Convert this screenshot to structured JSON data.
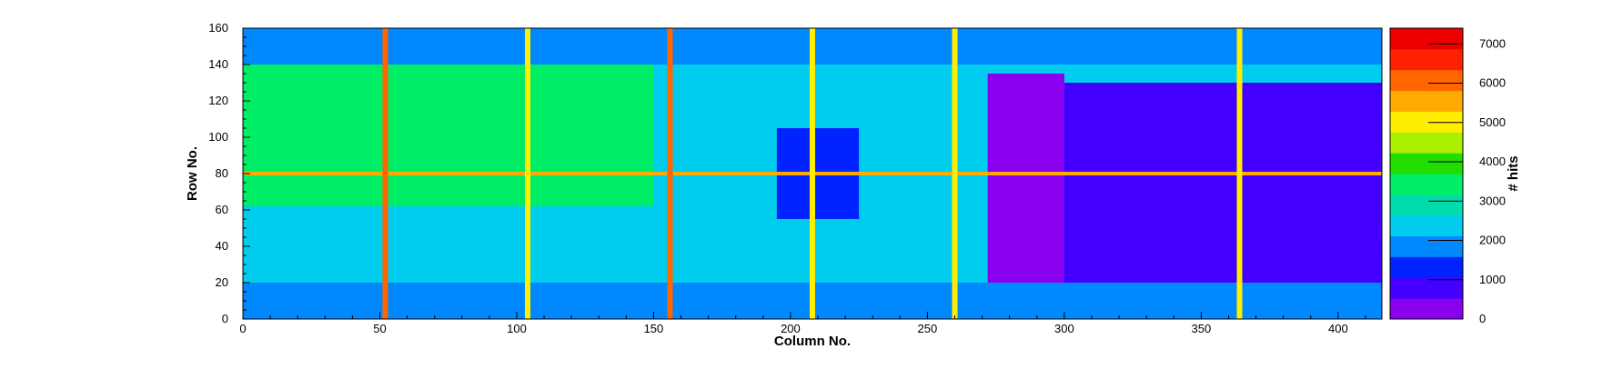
{
  "chart_data": {
    "type": "heatmap",
    "title": "",
    "xlabel": "Column No.",
    "ylabel": "Row No.",
    "colorbar_label": "# hits",
    "xlim": [
      0,
      416
    ],
    "ylim": [
      0,
      160
    ],
    "zlim": [
      0,
      7400
    ],
    "x_ticks": [
      "0",
      "50",
      "100",
      "150",
      "200",
      "250",
      "300",
      "350",
      "400"
    ],
    "y_ticks": [
      "0",
      "20",
      "40",
      "60",
      "80",
      "100",
      "120",
      "140",
      "160"
    ],
    "z_ticks": [
      "0",
      "1000",
      "2000",
      "3000",
      "4000",
      "5000",
      "6000",
      "7000"
    ],
    "palette": [
      "#8800ee",
      "#4400ff",
      "#0022ff",
      "#0088ff",
      "#00ccee",
      "#00ddaa",
      "#00ee66",
      "#22dd00",
      "#aaee00",
      "#ffee00",
      "#ffaa00",
      "#ff6600",
      "#ff2200",
      "#ee0000"
    ],
    "hot_columns": [
      {
        "x": 52,
        "hits": 6200
      },
      {
        "x": 104,
        "hits": 5200
      },
      {
        "x": 156,
        "hits": 6000
      },
      {
        "x": 208,
        "hits": 5000
      },
      {
        "x": 260,
        "hits": 5200
      },
      {
        "x": 364,
        "hits": 5000
      }
    ],
    "hot_row": {
      "y": 80,
      "hits": 5500
    },
    "regions": [
      {
        "name": "left-array",
        "x": [
          0,
          150
        ],
        "y": [
          62,
          155
        ],
        "hits": 3600
      },
      {
        "name": "mid-band",
        "x": [
          150,
          260
        ],
        "y": [
          12,
          155
        ],
        "hits": 2600
      },
      {
        "name": "center-block",
        "x": [
          195,
          225
        ],
        "y": [
          55,
          105
        ],
        "hits": 1200
      },
      {
        "name": "right-block",
        "x": [
          272,
          300
        ],
        "y": [
          20,
          135
        ],
        "hits": 300
      },
      {
        "name": "right-array",
        "x": [
          300,
          416
        ],
        "y": [
          15,
          130
        ],
        "hits": 900
      },
      {
        "name": "bottom-band",
        "x": [
          0,
          416
        ],
        "y": [
          0,
          20
        ],
        "hits": 1700
      },
      {
        "name": "top-band",
        "x": [
          0,
          416
        ],
        "y": [
          140,
          160
        ],
        "hits": 1600
      }
    ]
  }
}
